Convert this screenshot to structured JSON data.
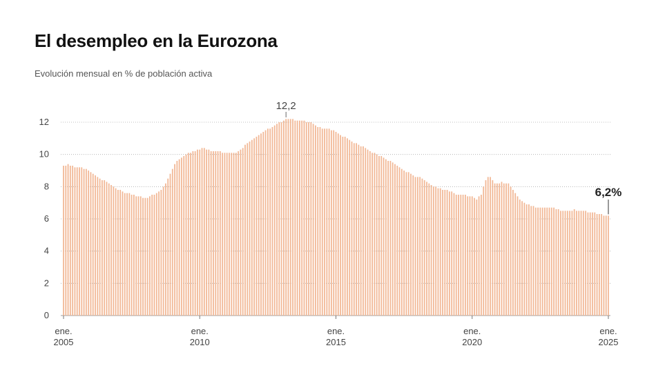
{
  "title": "El desempleo en la Eurozona",
  "subtitle": "Evolución mensual en % de población activa",
  "chart_data": {
    "type": "bar",
    "title": "El desempleo en la Eurozona",
    "subtitle": "Evolución mensual en % de población activa",
    "xlabel": "",
    "ylabel": "",
    "ylim": [
      0,
      12
    ],
    "yticks": [
      "0",
      "2",
      "4",
      "6",
      "8",
      "10",
      "12"
    ],
    "xticks": [
      {
        "line1": "ene.",
        "line2": "2005"
      },
      {
        "line1": "ene.",
        "line2": "2010"
      },
      {
        "line1": "ene.",
        "line2": "2015"
      },
      {
        "line1": "ene.",
        "line2": "2020"
      },
      {
        "line1": "ene.",
        "line2": "2025"
      }
    ],
    "grid": true,
    "bar_color": "#f2b896",
    "annotations": {
      "peak": "12,2",
      "last": "6,2%"
    },
    "values": [
      9.3,
      9.3,
      9.4,
      9.3,
      9.3,
      9.2,
      9.2,
      9.2,
      9.2,
      9.1,
      9.1,
      9.0,
      8.9,
      8.8,
      8.7,
      8.6,
      8.5,
      8.4,
      8.4,
      8.3,
      8.2,
      8.1,
      8.0,
      7.9,
      7.8,
      7.8,
      7.7,
      7.6,
      7.6,
      7.6,
      7.5,
      7.5,
      7.4,
      7.4,
      7.4,
      7.3,
      7.3,
      7.3,
      7.4,
      7.5,
      7.5,
      7.6,
      7.7,
      7.8,
      8.0,
      8.2,
      8.5,
      8.8,
      9.1,
      9.4,
      9.6,
      9.7,
      9.8,
      9.9,
      10.0,
      10.1,
      10.1,
      10.2,
      10.2,
      10.3,
      10.3,
      10.4,
      10.4,
      10.3,
      10.3,
      10.2,
      10.2,
      10.2,
      10.2,
      10.2,
      10.1,
      10.1,
      10.1,
      10.1,
      10.1,
      10.1,
      10.1,
      10.2,
      10.3,
      10.4,
      10.6,
      10.7,
      10.8,
      10.9,
      11.0,
      11.1,
      11.2,
      11.3,
      11.4,
      11.5,
      11.6,
      11.6,
      11.7,
      11.8,
      11.9,
      12.0,
      12.0,
      12.1,
      12.2,
      12.2,
      12.2,
      12.2,
      12.1,
      12.1,
      12.1,
      12.1,
      12.1,
      12.0,
      12.0,
      12.0,
      11.9,
      11.8,
      11.7,
      11.7,
      11.6,
      11.6,
      11.6,
      11.6,
      11.5,
      11.5,
      11.4,
      11.3,
      11.2,
      11.1,
      11.1,
      11.0,
      10.9,
      10.8,
      10.7,
      10.7,
      10.6,
      10.5,
      10.5,
      10.4,
      10.3,
      10.2,
      10.1,
      10.1,
      10.0,
      9.9,
      9.9,
      9.8,
      9.7,
      9.6,
      9.6,
      9.5,
      9.4,
      9.3,
      9.2,
      9.1,
      9.0,
      8.9,
      8.9,
      8.8,
      8.7,
      8.6,
      8.6,
      8.6,
      8.5,
      8.4,
      8.3,
      8.2,
      8.1,
      8.0,
      8.0,
      7.9,
      7.9,
      7.8,
      7.8,
      7.8,
      7.7,
      7.7,
      7.6,
      7.5,
      7.5,
      7.5,
      7.5,
      7.5,
      7.4,
      7.4,
      7.4,
      7.3,
      7.2,
      7.4,
      7.5,
      8.0,
      8.4,
      8.6,
      8.6,
      8.4,
      8.2,
      8.2,
      8.2,
      8.3,
      8.2,
      8.2,
      8.2,
      8.0,
      7.8,
      7.6,
      7.4,
      7.2,
      7.1,
      7.0,
      6.9,
      6.9,
      6.8,
      6.8,
      6.7,
      6.7,
      6.7,
      6.7,
      6.7,
      6.7,
      6.7,
      6.7,
      6.7,
      6.6,
      6.6,
      6.5,
      6.5,
      6.5,
      6.5,
      6.5,
      6.5,
      6.6,
      6.5,
      6.5,
      6.5,
      6.5,
      6.5,
      6.4,
      6.4,
      6.4,
      6.4,
      6.3,
      6.3,
      6.3,
      6.2,
      6.2,
      6.2
    ]
  }
}
